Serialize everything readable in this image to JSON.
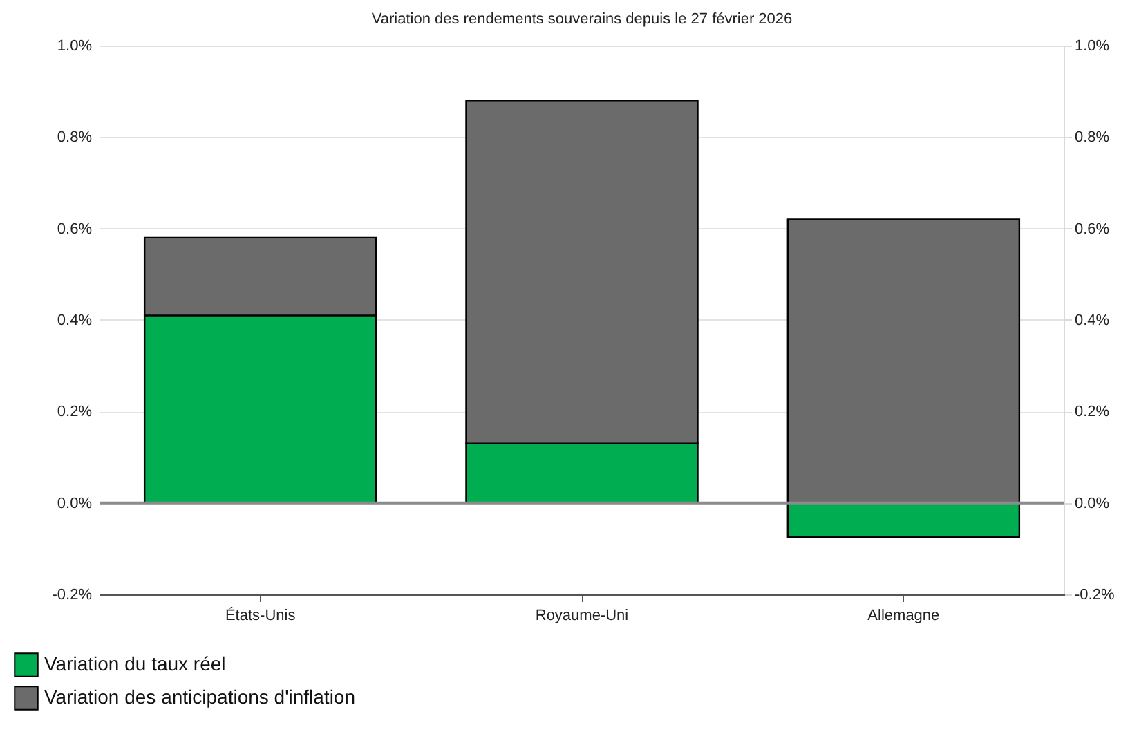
{
  "chart_data": {
    "type": "bar",
    "title": "Variation des rendements souverains depuis le 27 février 2026",
    "categories": [
      "États-Unis",
      "Royaume-Uni",
      "Allemagne"
    ],
    "series": [
      {
        "name": "Variation du taux réel",
        "color": "#00ad50",
        "values": [
          0.41,
          0.13,
          -0.075
        ]
      },
      {
        "name": "Variation des anticipations d'inflation",
        "color": "#6b6b6b",
        "values": [
          0.17,
          0.75,
          0.62
        ]
      }
    ],
    "stacked": true,
    "ylim": [
      -0.2,
      1.0
    ],
    "yticks": [
      {
        "value": -0.2,
        "label": "-0.2%"
      },
      {
        "value": 0,
        "label": "0.0%"
      },
      {
        "value": 0.2,
        "label": "0.2%"
      },
      {
        "value": 0.4,
        "label": "0.4%"
      },
      {
        "value": 0.6,
        "label": "0.6%"
      },
      {
        "value": 0.8,
        "label": "0.8%"
      },
      {
        "value": 1.0,
        "label": "1.0%"
      }
    ],
    "y2lim": [
      -0.2,
      1.0
    ],
    "y2ticks": [
      {
        "value": -0.2,
        "label": "-0.2%"
      },
      {
        "value": 0,
        "label": "0.0%"
      },
      {
        "value": 0.2,
        "label": "0.2%"
      },
      {
        "value": 0.4,
        "label": "0.4%"
      },
      {
        "value": 0.6,
        "label": "0.6%"
      },
      {
        "value": 0.8,
        "label": "0.8%"
      },
      {
        "value": 1.0,
        "label": "1.0%"
      }
    ],
    "ref_lines": [
      {
        "axis": "y",
        "value": 0,
        "color": "#8c8c8c"
      }
    ],
    "grid": "y",
    "legend": "bottom left"
  }
}
